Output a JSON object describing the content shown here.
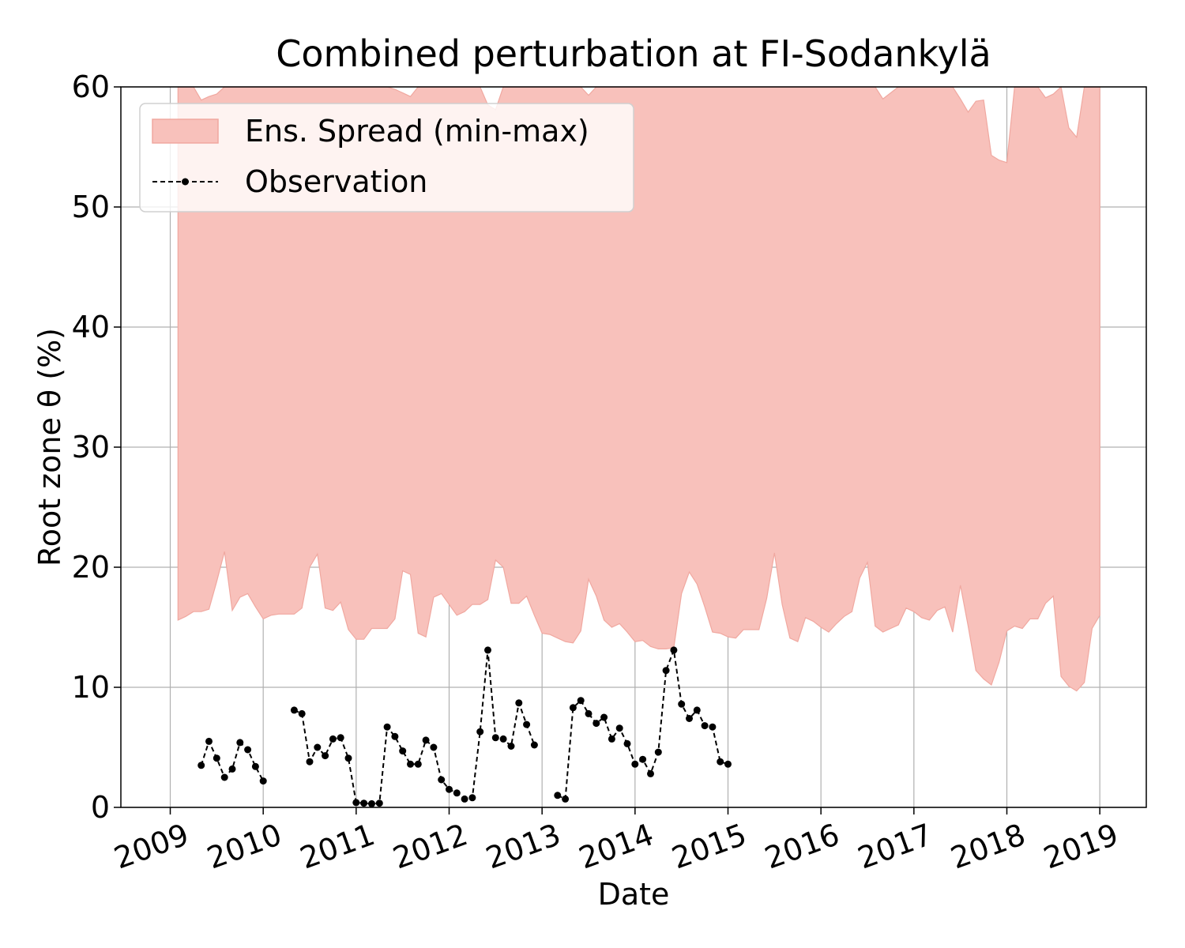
{
  "chart_data": {
    "type": "area",
    "title": "Combined perturbation at FI-Sodankylä",
    "xlabel": "Date",
    "ylabel": "Root zone θ  (%)",
    "ylim": [
      0,
      60
    ],
    "xlim": [
      "2008-06-20",
      "2019-07-01"
    ],
    "grid": true,
    "legend_position": "top-left",
    "y_ticks": [
      "0",
      "10",
      "20",
      "30",
      "40",
      "50",
      "60"
    ],
    "x_ticks": [
      "2009",
      "2010",
      "2011",
      "2012",
      "2013",
      "2014",
      "2015",
      "2016",
      "2017",
      "2018",
      "2019"
    ],
    "colors": {
      "spread_fill": "#f8c1bb",
      "spread_edge": "#f0a8a0",
      "observation": "#000000"
    },
    "series": [
      {
        "name": "Ens. Spread (min-max)",
        "kind": "band",
        "x": [
          "2009-02",
          "2009-03",
          "2009-04",
          "2009-05",
          "2009-06",
          "2009-07",
          "2009-08",
          "2009-09",
          "2009-10",
          "2009-11",
          "2009-12",
          "2010-01",
          "2010-02",
          "2010-03",
          "2010-04",
          "2010-05",
          "2010-06",
          "2010-07",
          "2010-08",
          "2010-09",
          "2010-10",
          "2010-11",
          "2010-12",
          "2011-01",
          "2011-02",
          "2011-03",
          "2011-04",
          "2011-05",
          "2011-06",
          "2011-07",
          "2011-08",
          "2011-09",
          "2011-10",
          "2011-11",
          "2011-12",
          "2012-01",
          "2012-02",
          "2012-03",
          "2012-04",
          "2012-05",
          "2012-06",
          "2012-07",
          "2012-08",
          "2012-09",
          "2012-10",
          "2012-11",
          "2012-12",
          "2013-01",
          "2013-02",
          "2013-03",
          "2013-04",
          "2013-05",
          "2013-06",
          "2013-07",
          "2013-08",
          "2013-09",
          "2013-10",
          "2013-11",
          "2013-12",
          "2014-01",
          "2014-02",
          "2014-03",
          "2014-04",
          "2014-05",
          "2014-06",
          "2014-07",
          "2014-08",
          "2014-09",
          "2014-10",
          "2014-11",
          "2014-12",
          "2015-01",
          "2015-02",
          "2015-03",
          "2015-04",
          "2015-05",
          "2015-06",
          "2015-07",
          "2015-08",
          "2015-09",
          "2015-10",
          "2015-11",
          "2015-12",
          "2016-01",
          "2016-02",
          "2016-03",
          "2016-04",
          "2016-05",
          "2016-06",
          "2016-07",
          "2016-08",
          "2016-09",
          "2016-10",
          "2016-11",
          "2016-12",
          "2017-01",
          "2017-02",
          "2017-03",
          "2017-04",
          "2017-05",
          "2017-06",
          "2017-07",
          "2017-08",
          "2017-09",
          "2017-10",
          "2017-11",
          "2017-12",
          "2018-01",
          "2018-02",
          "2018-03",
          "2018-04",
          "2018-05",
          "2018-06",
          "2018-07",
          "2018-08",
          "2018-09",
          "2018-10",
          "2018-11",
          "2018-12",
          "2019-01"
        ],
        "low": [
          15.6,
          15.9,
          16.3,
          16.3,
          16.5,
          18.8,
          21.3,
          16.4,
          17.5,
          17.8,
          16.7,
          15.7,
          16.0,
          16.1,
          16.1,
          16.1,
          16.6,
          20.0,
          21.1,
          16.6,
          16.4,
          17.1,
          14.8,
          14.0,
          14.0,
          14.9,
          14.9,
          14.9,
          15.7,
          19.7,
          19.4,
          14.5,
          14.2,
          17.5,
          17.8,
          16.9,
          16.0,
          16.3,
          16.9,
          16.9,
          17.3,
          20.6,
          20.0,
          17.0,
          17.0,
          17.6,
          16.0,
          14.5,
          14.4,
          14.1,
          13.8,
          13.7,
          14.7,
          19.0,
          17.6,
          15.6,
          15.0,
          15.3,
          14.6,
          13.8,
          13.9,
          13.4,
          13.2,
          13.2,
          13.3,
          17.8,
          19.6,
          18.6,
          16.7,
          14.6,
          14.5,
          14.2,
          14.1,
          14.8,
          14.8,
          14.8,
          17.4,
          21.2,
          16.9,
          14.1,
          13.8,
          15.8,
          15.5,
          15.0,
          14.6,
          15.3,
          15.9,
          16.3,
          19.1,
          20.4,
          15.1,
          14.6,
          14.9,
          15.2,
          16.6,
          16.3,
          15.8,
          15.6,
          16.4,
          16.7,
          14.6,
          18.5,
          15.1,
          11.4,
          10.7,
          10.2,
          12.1,
          14.7,
          15.1,
          14.9,
          15.7,
          15.7,
          17.0,
          17.6,
          10.9,
          10.1,
          9.7,
          10.4,
          14.9,
          16.0
        ],
        "high": [
          60,
          60,
          60,
          58.9,
          59.2,
          59.4,
          60,
          60,
          60,
          60,
          60,
          60,
          60,
          60,
          60,
          60,
          60,
          60,
          60,
          60,
          60,
          60,
          60,
          60,
          60,
          60,
          60,
          60,
          59.8,
          59.5,
          59.2,
          60,
          60,
          60,
          60,
          60,
          60,
          60,
          60,
          60,
          58.5,
          58.1,
          60,
          60,
          60,
          60,
          60,
          60,
          60,
          60,
          60,
          60,
          60,
          59.3,
          60,
          60,
          60,
          60,
          60,
          60,
          60,
          60,
          60,
          60,
          60,
          60,
          60,
          60,
          60,
          60,
          60,
          60,
          60,
          60,
          60,
          60,
          60,
          60,
          60,
          60,
          60,
          60,
          60,
          60,
          60,
          60,
          60,
          60,
          60,
          60,
          60,
          59.0,
          59.5,
          60,
          60,
          60,
          60,
          60,
          60,
          60,
          60,
          59.0,
          57.9,
          58.8,
          58.9,
          54.3,
          53.9,
          53.7,
          60,
          60,
          60,
          60,
          59.1,
          59.4,
          60,
          56.6,
          55.8,
          60,
          60,
          60
        ],
        "x_end": "2019-01"
      },
      {
        "name": "Observation",
        "kind": "line",
        "segments": [
          {
            "x": [
              "2009-05",
              "2009-06",
              "2009-07",
              "2009-08",
              "2009-09",
              "2009-10",
              "2009-11",
              "2009-12",
              "2010-01"
            ],
            "y": [
              3.5,
              5.5,
              4.1,
              2.5,
              3.2,
              5.4,
              4.8,
              3.4,
              2.2
            ]
          },
          {
            "x": [
              "2010-05",
              "2010-06",
              "2010-07",
              "2010-08",
              "2010-09",
              "2010-10",
              "2010-11",
              "2010-12",
              "2011-01",
              "2011-02",
              "2011-03",
              "2011-04",
              "2011-05",
              "2011-06",
              "2011-07",
              "2011-08",
              "2011-09",
              "2011-10",
              "2011-11",
              "2011-12",
              "2012-01",
              "2012-02",
              "2012-03",
              "2012-04",
              "2012-05",
              "2012-06",
              "2012-07",
              "2012-08",
              "2012-09",
              "2012-10",
              "2012-11",
              "2012-12"
            ],
            "y": [
              8.1,
              7.8,
              3.8,
              5.0,
              4.3,
              5.7,
              5.8,
              4.1,
              0.4,
              0.35,
              0.3,
              0.35,
              6.7,
              5.9,
              4.7,
              3.6,
              3.6,
              5.6,
              5.0,
              2.3,
              1.5,
              1.2,
              0.7,
              0.8,
              6.3,
              13.1,
              5.8,
              5.7,
              5.1,
              8.7,
              6.9,
              5.2
            ]
          },
          {
            "x": [
              "2013-03",
              "2013-04",
              "2013-05",
              "2013-06",
              "2013-07",
              "2013-08",
              "2013-09",
              "2013-10",
              "2013-11",
              "2013-12",
              "2014-01",
              "2014-02",
              "2014-03",
              "2014-04",
              "2014-05",
              "2014-06",
              "2014-07",
              "2014-08",
              "2014-09",
              "2014-10",
              "2014-11",
              "2014-12",
              "2015-01"
            ],
            "y": [
              1.0,
              0.7,
              8.3,
              8.9,
              7.8,
              7.0,
              7.5,
              5.7,
              6.6,
              5.3,
              3.6,
              4.0,
              2.8,
              4.6,
              11.4,
              13.1,
              8.6,
              7.4,
              8.1,
              6.8,
              6.7,
              3.8,
              3.6
            ]
          }
        ]
      }
    ]
  }
}
